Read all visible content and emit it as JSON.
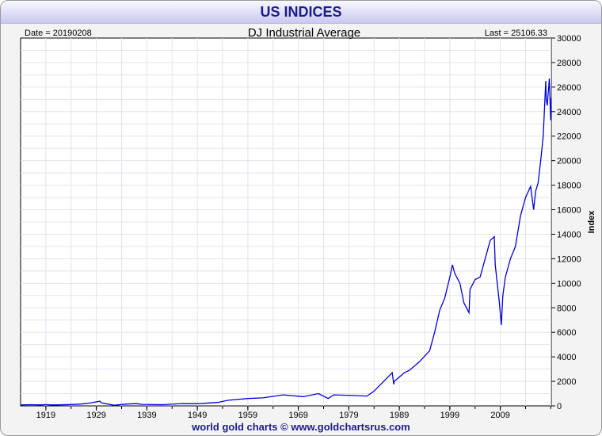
{
  "header": {
    "title": "US INDICES"
  },
  "footer": {
    "text": "world gold charts © www.goldchartsrus.com"
  },
  "chart_data": {
    "type": "line",
    "title": "DJ Industrial Average",
    "date_label": "Date = 20190208",
    "last_label": "Last = 25106.33",
    "ylabel": "Index",
    "xlabel": "",
    "xlim": [
      1914,
      2019.1
    ],
    "ylim": [
      0,
      30000
    ],
    "x_ticks": [
      1919,
      1929,
      1939,
      1949,
      1959,
      1969,
      1979,
      1989,
      1999,
      2009
    ],
    "y_ticks": [
      0,
      2000,
      4000,
      6000,
      8000,
      10000,
      12000,
      14000,
      16000,
      18000,
      20000,
      22000,
      24000,
      26000,
      28000,
      30000
    ],
    "grid": true,
    "line_color": "#0000dd",
    "series": [
      {
        "x": [
          1914,
          1916,
          1918,
          1919,
          1920,
          1921,
          1924,
          1926,
          1928,
          1929.7,
          1930,
          1932.5,
          1935,
          1937,
          1938,
          1942,
          1946,
          1949,
          1953,
          1955,
          1959,
          1962,
          1966,
          1970,
          1973,
          1974.9,
          1976,
          1980,
          1982.6,
          1984,
          1987.6,
          1987.9,
          1988,
          1990,
          1991,
          1993,
          1995,
          1996,
          1997,
          1998,
          1999,
          1999.5,
          2000,
          2001,
          2001.8,
          2002.8,
          2003,
          2004,
          2005,
          2006,
          2007,
          2007.8,
          2008,
          2008.8,
          2009.2,
          2009.5,
          2010,
          2011,
          2012,
          2013,
          2014,
          2015,
          2015.6,
          2016,
          2016.5,
          2017,
          2017.5,
          2018,
          2018.1,
          2018.3,
          2018.7,
          2018.98,
          2019.1
        ],
        "y": [
          75,
          95,
          80,
          105,
          80,
          75,
          110,
          150,
          250,
          380,
          250,
          50,
          150,
          180,
          120,
          100,
          190,
          180,
          280,
          450,
          600,
          650,
          900,
          750,
          1000,
          600,
          900,
          850,
          800,
          1200,
          2700,
          1750,
          2000,
          2700,
          2900,
          3600,
          4500,
          6000,
          7800,
          8800,
          10500,
          11500,
          10800,
          10000,
          8400,
          7600,
          9500,
          10300,
          10500,
          12000,
          13500,
          13800,
          11500,
          8500,
          6600,
          9000,
          10500,
          12000,
          13000,
          15500,
          17000,
          17900,
          16000,
          17500,
          18200,
          20000,
          22000,
          26500,
          25000,
          24500,
          26700,
          23300,
          25106
        ]
      }
    ]
  }
}
